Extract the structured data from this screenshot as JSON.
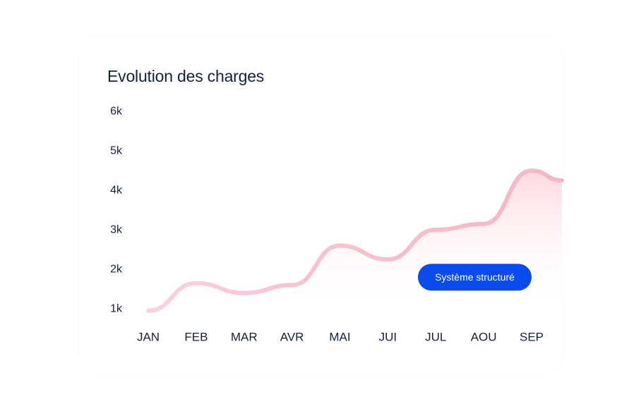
{
  "chart_data": {
    "type": "area",
    "title": "Evolution des charges",
    "xlabel": "",
    "ylabel": "",
    "categories": [
      "JAN",
      "FEB",
      "MAR",
      "AVR",
      "MAI",
      "JUI",
      "JUL",
      "AOU",
      "SEP"
    ],
    "y_tick_labels": [
      "1k",
      "2k",
      "3k",
      "4k",
      "5k",
      "6k"
    ],
    "ylim": [
      1000,
      6000
    ],
    "grid": false,
    "legend": "none",
    "series": [
      {
        "x": [
          "JAN",
          "FEB",
          "MAR",
          "AVR",
          "MAI",
          "JUI",
          "JUL",
          "AOU",
          "SEP"
        ],
        "values": [
          950,
          1650,
          1400,
          1600,
          2600,
          2250,
          3000,
          3150,
          4500
        ],
        "color": "#f7b6c4",
        "fill": "#ffe3ea"
      }
    ],
    "reference_line": {
      "value": 1800,
      "label": "Système structuré",
      "color_start": "#b7cdf9",
      "color_end": "#0a4bf0"
    }
  }
}
